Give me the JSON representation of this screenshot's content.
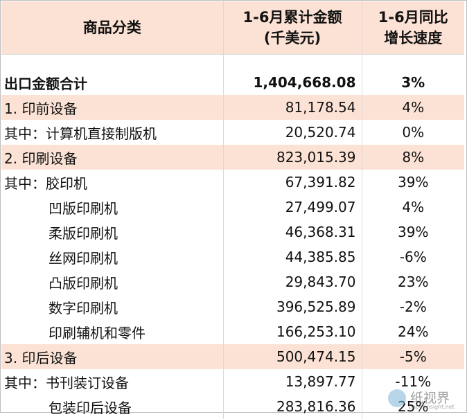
{
  "header": {
    "col1": "商品分类",
    "col2_line1": "1-6月累计金额",
    "col2_line2": "(千美元)",
    "col3_line1": "1-6月同比",
    "col3_line2": "增长速度"
  },
  "rows": [
    {
      "label": "出口金额合计",
      "value": "1,404,668.08",
      "growth": "3%"
    },
    {
      "label": "1.  印前设备",
      "value": "81,178.54",
      "growth": "4%"
    },
    {
      "label": "其中：计算机直接制版机",
      "value": "20,520.74",
      "growth": "0%"
    },
    {
      "label": "2.  印刷设备",
      "value": "823,015.39",
      "growth": "8%"
    },
    {
      "label": "其中：胶印机",
      "value": "67,391.82",
      "growth": "39%"
    },
    {
      "label": "凹版印刷机",
      "value": "27,499.07",
      "growth": "4%"
    },
    {
      "label": "柔版印刷机",
      "value": "46,368.31",
      "growth": "39%"
    },
    {
      "label": "丝网印刷机",
      "value": "44,385.85",
      "growth": "-6%"
    },
    {
      "label": "凸版印刷机",
      "value": "29,843.70",
      "growth": "23%"
    },
    {
      "label": "数字印刷机",
      "value": "396,525.89",
      "growth": "-2%"
    },
    {
      "label": "印刷辅机和零件",
      "value": "166,253.10",
      "growth": "24%"
    },
    {
      "label": "3. 印后设备",
      "value": "500,474.15",
      "growth": "-5%"
    },
    {
      "label": "其中：书刊装订设备",
      "value": "13,897.77",
      "growth": "-11%"
    },
    {
      "label": "包装印后设备",
      "value": "283,816.36",
      "growth": "25%"
    }
  ],
  "watermark": {
    "text": "纸视界",
    "url": "paperinsight.net"
  }
}
